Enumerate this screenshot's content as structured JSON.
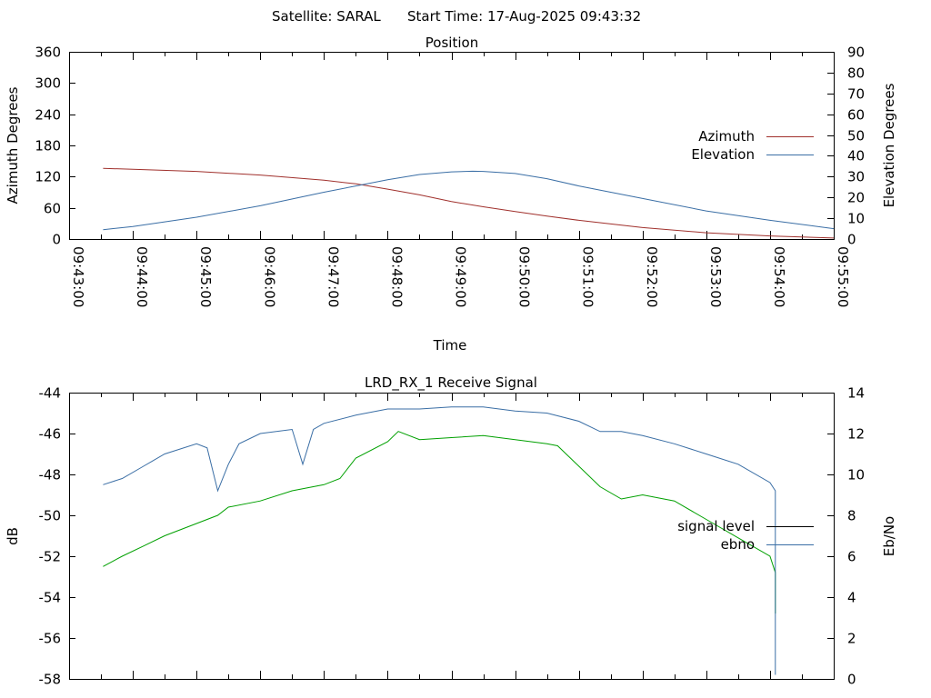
{
  "header": {
    "satellite": "Satellite: SARAL",
    "start_time": "Start Time: 17-Aug-2025 09:43:32"
  },
  "chart_data": [
    {
      "type": "line",
      "title": "Position",
      "xlabel": "Time",
      "ylabel": "Azimuth Degrees",
      "y2label": "Elevation Degrees",
      "xlim": [
        "09:43:00",
        "09:55:00"
      ],
      "ylim": [
        0,
        360
      ],
      "y2lim": [
        0,
        90
      ],
      "x_ticks": [
        "09:43:00",
        "09:44:00",
        "09:45:00",
        "09:46:00",
        "09:47:00",
        "09:48:00",
        "09:49:00",
        "09:50:00",
        "09:51:00",
        "09:52:00",
        "09:53:00",
        "09:54:00",
        "09:55:00"
      ],
      "y_ticks": [
        0,
        60,
        120,
        180,
        240,
        300,
        360
      ],
      "y2_ticks": [
        0,
        10,
        20,
        30,
        40,
        50,
        60,
        70,
        80,
        90
      ],
      "legend_position": "right",
      "series": [
        {
          "name": "Azimuth",
          "axis": "y",
          "color": "#a0302c",
          "x": [
            "09:43:32",
            "09:44:00",
            "09:45:00",
            "09:46:00",
            "09:47:00",
            "09:47:30",
            "09:48:00",
            "09:48:30",
            "09:49:00",
            "09:49:30",
            "09:50:00",
            "09:50:30",
            "09:51:00",
            "09:52:00",
            "09:53:00",
            "09:54:00",
            "09:55:00"
          ],
          "values": [
            136,
            134,
            130,
            123,
            113,
            106,
            96,
            85,
            72,
            62,
            53,
            44,
            36,
            22,
            12,
            6,
            2
          ]
        },
        {
          "name": "Elevation",
          "axis": "y2",
          "color": "#3a6ea5",
          "x": [
            "09:43:32",
            "09:44:00",
            "09:45:00",
            "09:46:00",
            "09:47:00",
            "09:47:30",
            "09:48:00",
            "09:48:30",
            "09:49:00",
            "09:49:20",
            "09:49:30",
            "09:50:00",
            "09:50:30",
            "09:51:00",
            "09:52:00",
            "09:53:00",
            "09:54:00",
            "09:55:00"
          ],
          "values": [
            4.5,
            6,
            10.5,
            16,
            22.5,
            25.5,
            28.5,
            31,
            32.3,
            32.6,
            32.5,
            31.5,
            29,
            25.5,
            19.5,
            13.5,
            9,
            5
          ]
        }
      ]
    },
    {
      "type": "line",
      "title": "LRD_RX_1 Receive Signal",
      "ylabel": "dB",
      "y2label": "Eb/No",
      "xlim": [
        "09:43:00",
        "09:55:00"
      ],
      "ylim": [
        -58,
        -44
      ],
      "y2lim": [
        0,
        14
      ],
      "y_ticks": [
        -58,
        -56,
        -54,
        -52,
        -50,
        -48,
        -46,
        -44
      ],
      "y2_ticks": [
        0,
        2,
        4,
        6,
        8,
        10,
        12,
        14
      ],
      "legend_position": "right",
      "series": [
        {
          "name": "signal level",
          "axis": "y",
          "color": "#00a000",
          "x": [
            "09:43:32",
            "09:43:50",
            "09:44:10",
            "09:44:30",
            "09:45:00",
            "09:45:20",
            "09:45:30",
            "09:46:00",
            "09:46:30",
            "09:47:00",
            "09:47:15",
            "09:47:30",
            "09:48:00",
            "09:48:10",
            "09:48:30",
            "09:49:00",
            "09:49:30",
            "09:50:00",
            "09:50:30",
            "09:50:40",
            "09:51:00",
            "09:51:20",
            "09:51:40",
            "09:52:00",
            "09:52:30",
            "09:53:00",
            "09:53:30",
            "09:54:00",
            "09:54:05",
            "09:54:05",
            "09:54:05"
          ],
          "values": [
            -52.5,
            -52.0,
            -51.5,
            -51.0,
            -50.4,
            -50.0,
            -49.6,
            -49.3,
            -48.8,
            -48.5,
            -48.2,
            -47.2,
            -46.4,
            -45.9,
            -46.3,
            -46.2,
            -46.1,
            -46.3,
            -46.5,
            -46.6,
            -47.6,
            -48.6,
            -49.2,
            -49.0,
            -49.3,
            -50.2,
            -51.1,
            -52.0,
            -52.8,
            -53.6,
            -54.8
          ]
        },
        {
          "name": "ebno",
          "axis": "y2",
          "color": "#3a6ea5",
          "x": [
            "09:43:32",
            "09:43:50",
            "09:44:10",
            "09:44:30",
            "09:45:00",
            "09:45:10",
            "09:45:20",
            "09:45:30",
            "09:45:40",
            "09:46:00",
            "09:46:30",
            "09:46:40",
            "09:46:50",
            "09:47:00",
            "09:47:30",
            "09:48:00",
            "09:48:30",
            "09:49:00",
            "09:49:30",
            "09:50:00",
            "09:50:30",
            "09:51:00",
            "09:51:20",
            "09:51:40",
            "09:52:00",
            "09:52:30",
            "09:53:00",
            "09:53:30",
            "09:54:00",
            "09:54:05",
            "09:54:05"
          ],
          "values": [
            9.5,
            9.8,
            10.4,
            11.0,
            11.5,
            11.3,
            9.2,
            10.5,
            11.5,
            12.0,
            12.2,
            10.5,
            12.2,
            12.5,
            12.9,
            13.2,
            13.2,
            13.3,
            13.3,
            13.1,
            13.0,
            12.6,
            12.1,
            12.1,
            11.9,
            11.5,
            11.0,
            10.5,
            9.6,
            9.2,
            0.2
          ]
        }
      ]
    }
  ]
}
